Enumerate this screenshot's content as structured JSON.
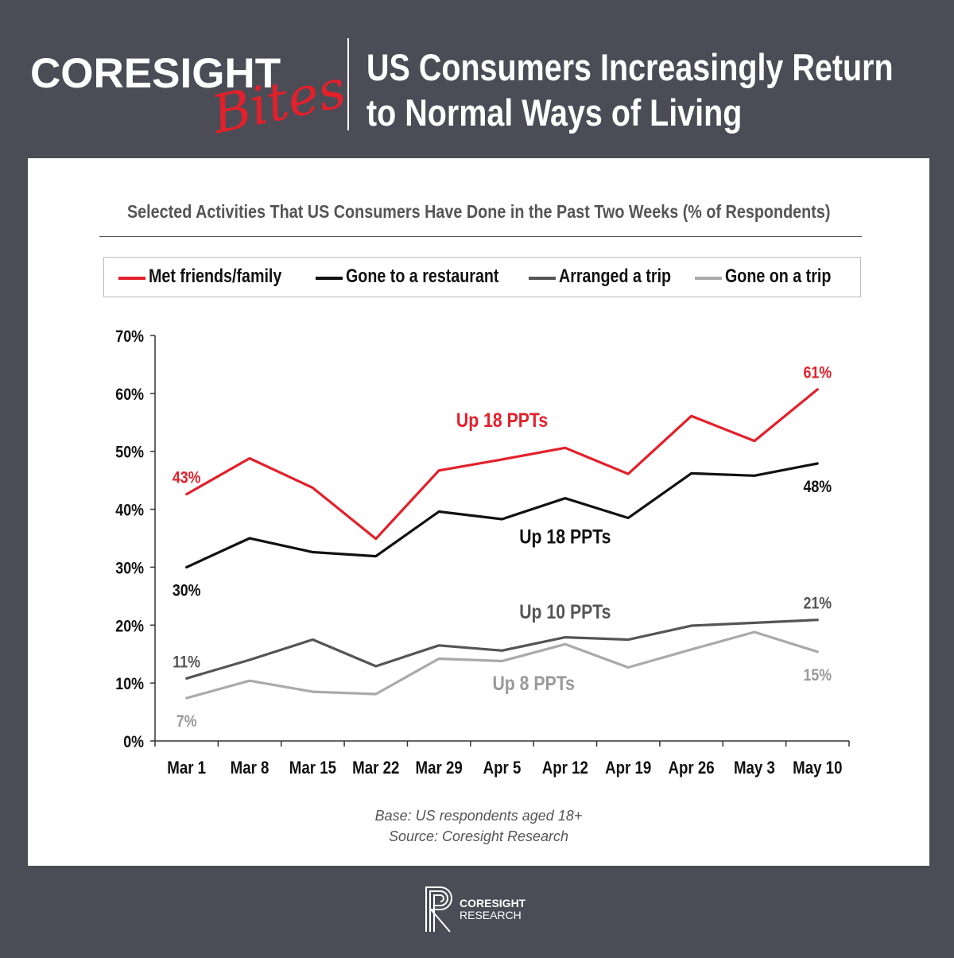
{
  "brand": {
    "name": "CORESIGHT",
    "script": "Bites"
  },
  "headline": {
    "line1": "US Consumers Increasingly Return",
    "line2": "to Normal Ways of Living"
  },
  "footnotes": {
    "base": "Base: US respondents aged 18+",
    "source": "Source: Coresight Research"
  },
  "footer_logo": {
    "line1": "CORESIGHT",
    "line2": "RESEARCH"
  },
  "chart_data": {
    "type": "line",
    "title": "Selected Activities That US Consumers Have Done in the Past Two Weeks (% of Respondents)",
    "xlabel": "",
    "ylabel": "",
    "categories": [
      "Mar 1",
      "Mar 8",
      "Mar 15",
      "Mar 22",
      "Mar 29",
      "Apr 5",
      "Apr 12",
      "Apr 19",
      "Apr 26",
      "May 3",
      "May 10"
    ],
    "ylim": [
      0,
      70
    ],
    "yticks": [
      0,
      10,
      20,
      30,
      40,
      50,
      60,
      70
    ],
    "ytick_labels": [
      "0%",
      "10%",
      "20%",
      "30%",
      "40%",
      "50%",
      "60%",
      "70%"
    ],
    "grid": false,
    "legend_position": "top",
    "series": [
      {
        "name": "Met friends/family",
        "color": "#e3202b",
        "values": [
          42.6,
          48.8,
          43.7,
          34.9,
          46.7,
          48.6,
          50.6,
          46.1,
          56.1,
          51.8,
          60.7
        ]
      },
      {
        "name": "Gone to a restaurant",
        "color": "#111111",
        "values": [
          30.0,
          35.0,
          32.6,
          31.9,
          39.6,
          38.3,
          41.9,
          38.5,
          46.2,
          45.8,
          47.9
        ]
      },
      {
        "name": "Arranged a trip",
        "color": "#555555",
        "values": [
          10.8,
          14.0,
          17.5,
          12.9,
          16.5,
          15.6,
          17.9,
          17.5,
          19.9,
          20.4,
          20.9
        ]
      },
      {
        "name": "Gone on a trip",
        "color": "#aaaaaa",
        "values": [
          7.4,
          10.4,
          8.5,
          8.1,
          14.2,
          13.8,
          16.7,
          12.7,
          15.8,
          18.8,
          15.4
        ]
      }
    ],
    "annotations": [
      {
        "text": "43%",
        "color": "#e3202b",
        "series": 0,
        "index": 0,
        "value": 42.6,
        "side": "above"
      },
      {
        "text": "61%",
        "color": "#e3202b",
        "series": 0,
        "index": 10,
        "value": 60.7,
        "side": "above"
      },
      {
        "text": "Up 18 PPTs",
        "color": "#e3202b",
        "index": 5,
        "value": 55.3
      },
      {
        "text": "30%",
        "color": "#111111",
        "series": 1,
        "index": 0,
        "value": 30.0,
        "side": "below"
      },
      {
        "text": "48%",
        "color": "#111111",
        "series": 1,
        "index": 10,
        "value": 47.9,
        "side": "below"
      },
      {
        "text": "Up 18 PPTs",
        "color": "#111111",
        "index": 6,
        "value": 35.2
      },
      {
        "text": "11%",
        "color": "#555555",
        "series": 2,
        "index": 0,
        "value": 10.8,
        "side": "above"
      },
      {
        "text": "21%",
        "color": "#555555",
        "series": 2,
        "index": 10,
        "value": 20.9,
        "side": "above"
      },
      {
        "text": "Up 10 PPTs",
        "color": "#555555",
        "index": 6,
        "value": 22.2
      },
      {
        "text": "7%",
        "color": "#999999",
        "series": 3,
        "index": 0,
        "value": 7.4,
        "side": "below"
      },
      {
        "text": "15%",
        "color": "#999999",
        "series": 3,
        "index": 10,
        "value": 15.4,
        "side": "below"
      },
      {
        "text": "Up 8 PPTs",
        "color": "#999999",
        "index": 5.5,
        "value": 9.9
      }
    ]
  }
}
